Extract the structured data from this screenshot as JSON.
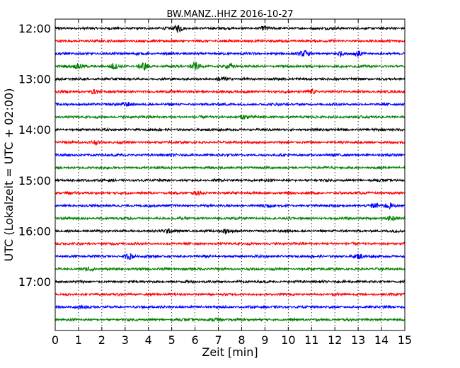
{
  "chart_data": {
    "type": "line",
    "title": "BW.MANZ..HHZ 2016-10-27",
    "xlabel": "Zeit  [min]",
    "ylabel": "UTC (Lokalzeit = UTC + 02:00)",
    "xlim": [
      0,
      15
    ],
    "x_ticks": [
      "0",
      "1",
      "2",
      "3",
      "4",
      "5",
      "6",
      "7",
      "8",
      "9",
      "10",
      "11",
      "12",
      "13",
      "14",
      "15"
    ],
    "y_ticks": [
      "12:00",
      "13:00",
      "14:00",
      "15:00",
      "16:00",
      "17:00"
    ],
    "grid": "vertical dotted",
    "trace_colors": [
      "#000000",
      "#ff0000",
      "#0000ff",
      "#008000"
    ],
    "trace_count": 24,
    "trace_interval_minutes": 15,
    "first_trace_start": "12:00",
    "events": [
      {
        "trace": 0,
        "minute": 5.3,
        "amplitude": 2.2
      },
      {
        "trace": 0,
        "minute": 9.0,
        "amplitude": 1.2
      },
      {
        "trace": 2,
        "minute": 10.7,
        "amplitude": 1.5
      },
      {
        "trace": 2,
        "minute": 12.2,
        "amplitude": 1.4
      },
      {
        "trace": 2,
        "minute": 13.0,
        "amplitude": 1.2
      },
      {
        "trace": 3,
        "minute": 1.0,
        "amplitude": 1.5
      },
      {
        "trace": 3,
        "minute": 2.5,
        "amplitude": 1.6
      },
      {
        "trace": 3,
        "minute": 3.8,
        "amplitude": 2.2
      },
      {
        "trace": 3,
        "minute": 6.0,
        "amplitude": 2.0
      },
      {
        "trace": 3,
        "minute": 7.5,
        "amplitude": 1.2
      },
      {
        "trace": 4,
        "minute": 7.2,
        "amplitude": 1.0
      },
      {
        "trace": 5,
        "minute": 1.7,
        "amplitude": 1.1
      },
      {
        "trace": 5,
        "minute": 11.0,
        "amplitude": 1.2
      },
      {
        "trace": 6,
        "minute": 3.1,
        "amplitude": 1.1
      },
      {
        "trace": 7,
        "minute": 8.1,
        "amplitude": 1.2
      },
      {
        "trace": 9,
        "minute": 1.7,
        "amplitude": 1.1
      },
      {
        "trace": 13,
        "minute": 6.1,
        "amplitude": 1.0
      },
      {
        "trace": 14,
        "minute": 9.1,
        "amplitude": 1.1
      },
      {
        "trace": 14,
        "minute": 13.7,
        "amplitude": 1.3
      },
      {
        "trace": 14,
        "minute": 14.3,
        "amplitude": 1.5
      },
      {
        "trace": 15,
        "minute": 14.4,
        "amplitude": 1.1
      },
      {
        "trace": 16,
        "minute": 4.8,
        "amplitude": 1.1
      },
      {
        "trace": 16,
        "minute": 7.3,
        "amplitude": 1.0
      },
      {
        "trace": 18,
        "minute": 3.2,
        "amplitude": 1.6
      },
      {
        "trace": 18,
        "minute": 13.0,
        "amplitude": 1.3
      },
      {
        "trace": 19,
        "minute": 1.5,
        "amplitude": 1.1
      },
      {
        "trace": 22,
        "minute": 1.0,
        "amplitude": 1.0
      },
      {
        "trace": 23,
        "minute": 6.9,
        "amplitude": 1.1
      }
    ]
  }
}
